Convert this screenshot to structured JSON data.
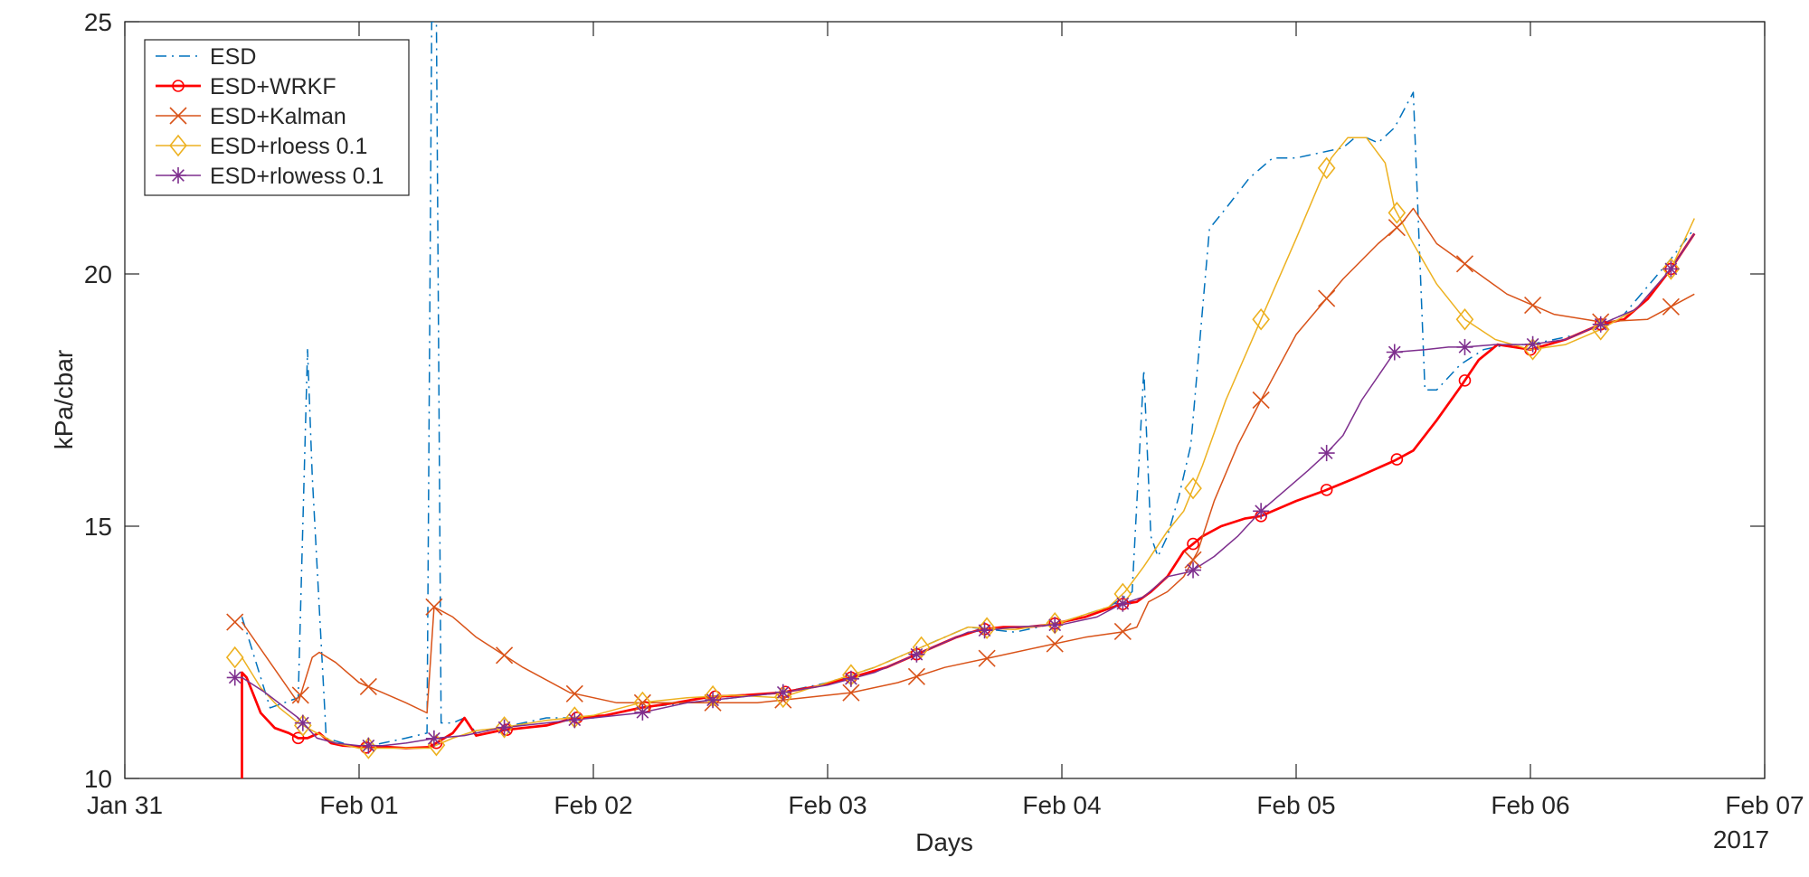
{
  "chart_data": {
    "type": "line",
    "title": "",
    "xlabel": "Days",
    "ylabel": "kPa/cbar",
    "x_unit": "days",
    "x_tick_labels": [
      "Jan 31",
      "Feb 01",
      "Feb 02",
      "Feb 03",
      "Feb 04",
      "Feb 05",
      "Feb 06",
      "Feb 07"
    ],
    "x_year_label": "2017",
    "xlim": [
      0,
      7
    ],
    "ylim": [
      10,
      25
    ],
    "y_ticks": [
      10,
      15,
      20,
      25
    ],
    "grid": false,
    "legend_position": "top-left",
    "series": [
      {
        "name": "ESD",
        "color": "#0072BD",
        "line_style": "dashdot",
        "line_width": 1,
        "marker": "none",
        "x": [
          0.5,
          0.62,
          0.74,
          0.78,
          0.8,
          0.86,
          0.93,
          1.0,
          1.1,
          1.2,
          1.29,
          1.31,
          1.33,
          1.35,
          1.37,
          1.4,
          1.45,
          1.5,
          1.6,
          1.8,
          2.0,
          2.2,
          2.4,
          2.6,
          2.8,
          3.0,
          3.2,
          3.4,
          3.6,
          3.8,
          4.0,
          4.2,
          4.3,
          4.35,
          4.38,
          4.41,
          4.45,
          4.5,
          4.55,
          4.63,
          4.7,
          4.8,
          4.9,
          5.0,
          5.1,
          5.2,
          5.25,
          5.3,
          5.35,
          5.42,
          5.5,
          5.55,
          5.6,
          5.7,
          5.8,
          5.9,
          6.0,
          6.2,
          6.4,
          6.6,
          6.7
        ],
        "y": [
          13.2,
          11.4,
          11.6,
          18.5,
          16.0,
          10.8,
          10.7,
          10.6,
          10.7,
          10.8,
          10.9,
          25.0,
          25.0,
          11.1,
          11.1,
          11.1,
          11.2,
          10.9,
          11.0,
          11.2,
          11.2,
          11.4,
          11.5,
          11.6,
          11.7,
          11.9,
          12.2,
          12.6,
          13.0,
          12.9,
          13.1,
          13.4,
          13.7,
          18.1,
          14.8,
          14.4,
          14.8,
          15.6,
          16.6,
          20.9,
          21.3,
          21.9,
          22.3,
          22.3,
          22.4,
          22.5,
          22.7,
          22.7,
          22.6,
          22.9,
          23.6,
          17.7,
          17.7,
          18.2,
          18.5,
          18.6,
          18.6,
          18.8,
          19.2,
          20.3,
          20.9
        ]
      },
      {
        "name": "ESD+WRKF",
        "color": "#FF0000",
        "line_style": "solid",
        "line_width": 1.8,
        "marker": "circle",
        "x": [
          0.5,
          0.5,
          0.52,
          0.58,
          0.64,
          0.7,
          0.74,
          0.78,
          0.83,
          0.88,
          0.93,
          1.0,
          1.05,
          1.1,
          1.2,
          1.3,
          1.4,
          1.45,
          1.5,
          1.6,
          1.7,
          1.8,
          1.92,
          2.05,
          2.2,
          2.35,
          2.5,
          2.65,
          2.8,
          2.95,
          3.1,
          3.25,
          3.4,
          3.55,
          3.65,
          3.75,
          3.85,
          3.95,
          4.1,
          4.25,
          4.32,
          4.38,
          4.45,
          4.52,
          4.6,
          4.68,
          4.78,
          4.85,
          5.0,
          5.12,
          5.25,
          5.42,
          5.5,
          5.6,
          5.7,
          5.78,
          5.86,
          6.0,
          6.15,
          6.3,
          6.4,
          6.5,
          6.6,
          6.7
        ],
        "y": [
          10.0,
          12.1,
          12.0,
          11.3,
          11.0,
          10.9,
          10.8,
          10.8,
          10.9,
          10.7,
          10.65,
          10.63,
          10.6,
          10.63,
          10.6,
          10.62,
          10.9,
          11.2,
          10.85,
          10.95,
          11.0,
          11.05,
          11.2,
          11.25,
          11.4,
          11.5,
          11.62,
          11.65,
          11.7,
          11.82,
          12.0,
          12.2,
          12.5,
          12.8,
          12.95,
          13.0,
          13.0,
          13.05,
          13.2,
          13.45,
          13.5,
          13.7,
          14.0,
          14.5,
          14.8,
          15.0,
          15.15,
          15.2,
          15.5,
          15.7,
          15.95,
          16.3,
          16.5,
          17.1,
          17.75,
          18.3,
          18.6,
          18.5,
          18.7,
          19.0,
          19.1,
          19.5,
          20.1,
          20.8
        ]
      },
      {
        "name": "ESD+Kalman",
        "color": "#D95319",
        "line_style": "solid",
        "line_width": 1,
        "marker": "x",
        "x": [
          0.5,
          0.62,
          0.74,
          0.8,
          0.83,
          0.9,
          1.0,
          1.1,
          1.2,
          1.29,
          1.32,
          1.4,
          1.5,
          1.7,
          1.9,
          2.1,
          2.3,
          2.5,
          2.7,
          2.9,
          3.1,
          3.3,
          3.5,
          3.7,
          3.9,
          4.1,
          4.25,
          4.32,
          4.37,
          4.45,
          4.52,
          4.58,
          4.65,
          4.75,
          4.85,
          5.0,
          5.2,
          5.35,
          5.45,
          5.5,
          5.6,
          5.75,
          5.9,
          6.1,
          6.3,
          6.5,
          6.7
        ],
        "y": [
          13.1,
          12.3,
          11.5,
          12.4,
          12.5,
          12.3,
          11.9,
          11.7,
          11.5,
          11.3,
          13.4,
          13.2,
          12.8,
          12.2,
          11.7,
          11.5,
          11.5,
          11.5,
          11.5,
          11.6,
          11.7,
          11.9,
          12.2,
          12.4,
          12.6,
          12.8,
          12.9,
          13.0,
          13.5,
          13.7,
          14.0,
          14.5,
          15.5,
          16.6,
          17.5,
          18.8,
          19.9,
          20.6,
          21.0,
          21.3,
          20.6,
          20.1,
          19.6,
          19.2,
          19.05,
          19.1,
          19.6
        ]
      },
      {
        "name": "ESD+rloess 0.1",
        "color": "#EDB120",
        "line_style": "solid",
        "line_width": 1,
        "marker": "diamond",
        "x": [
          0.5,
          0.58,
          0.66,
          0.74,
          0.82,
          0.9,
          1.0,
          1.1,
          1.2,
          1.3,
          1.4,
          1.5,
          1.6,
          1.8,
          2.0,
          2.2,
          2.4,
          2.6,
          2.8,
          3.0,
          3.2,
          3.4,
          3.6,
          3.8,
          4.0,
          4.2,
          4.27,
          4.35,
          4.45,
          4.52,
          4.6,
          4.7,
          4.85,
          5.0,
          5.1,
          5.15,
          5.22,
          5.3,
          5.38,
          5.42,
          5.5,
          5.6,
          5.72,
          5.85,
          6.0,
          6.15,
          6.3,
          6.45,
          6.6,
          6.7
        ],
        "y": [
          12.4,
          11.8,
          11.4,
          11.1,
          10.9,
          10.7,
          10.6,
          10.6,
          10.6,
          10.6,
          10.8,
          10.95,
          11.0,
          11.15,
          11.25,
          11.5,
          11.6,
          11.65,
          11.6,
          11.9,
          12.2,
          12.6,
          13.0,
          12.95,
          13.1,
          13.4,
          13.7,
          14.2,
          14.9,
          15.3,
          16.2,
          17.5,
          19.1,
          20.7,
          21.8,
          22.3,
          22.7,
          22.7,
          22.2,
          21.3,
          20.6,
          19.8,
          19.1,
          18.7,
          18.5,
          18.6,
          18.9,
          19.3,
          20.1,
          21.1
        ]
      },
      {
        "name": "ESD+rlowess 0.1",
        "color": "#7E2F8E",
        "line_style": "solid",
        "line_width": 1,
        "marker": "asterisk",
        "x": [
          0.5,
          0.6,
          0.74,
          0.82,
          0.9,
          1.0,
          1.1,
          1.2,
          1.33,
          1.45,
          1.6,
          1.8,
          2.0,
          2.2,
          2.4,
          2.6,
          2.8,
          3.0,
          3.2,
          3.4,
          3.6,
          3.8,
          4.0,
          4.15,
          4.25,
          4.35,
          4.45,
          4.55,
          4.65,
          4.75,
          4.85,
          4.95,
          5.05,
          5.12,
          5.2,
          5.28,
          5.42,
          5.55,
          5.65,
          5.72,
          5.85,
          6.0,
          6.15,
          6.3,
          6.45,
          6.6,
          6.7
        ],
        "y": [
          12.0,
          11.7,
          11.2,
          10.8,
          10.7,
          10.65,
          10.65,
          10.7,
          10.8,
          10.85,
          11.0,
          11.1,
          11.2,
          11.3,
          11.5,
          11.6,
          11.7,
          11.85,
          12.1,
          12.5,
          12.9,
          13.0,
          13.05,
          13.2,
          13.45,
          13.6,
          14.0,
          14.1,
          14.4,
          14.8,
          15.3,
          15.7,
          16.1,
          16.4,
          16.8,
          17.5,
          18.45,
          18.5,
          18.55,
          18.55,
          18.6,
          18.6,
          18.7,
          19.0,
          19.3,
          20.1,
          20.8
        ]
      }
    ]
  }
}
